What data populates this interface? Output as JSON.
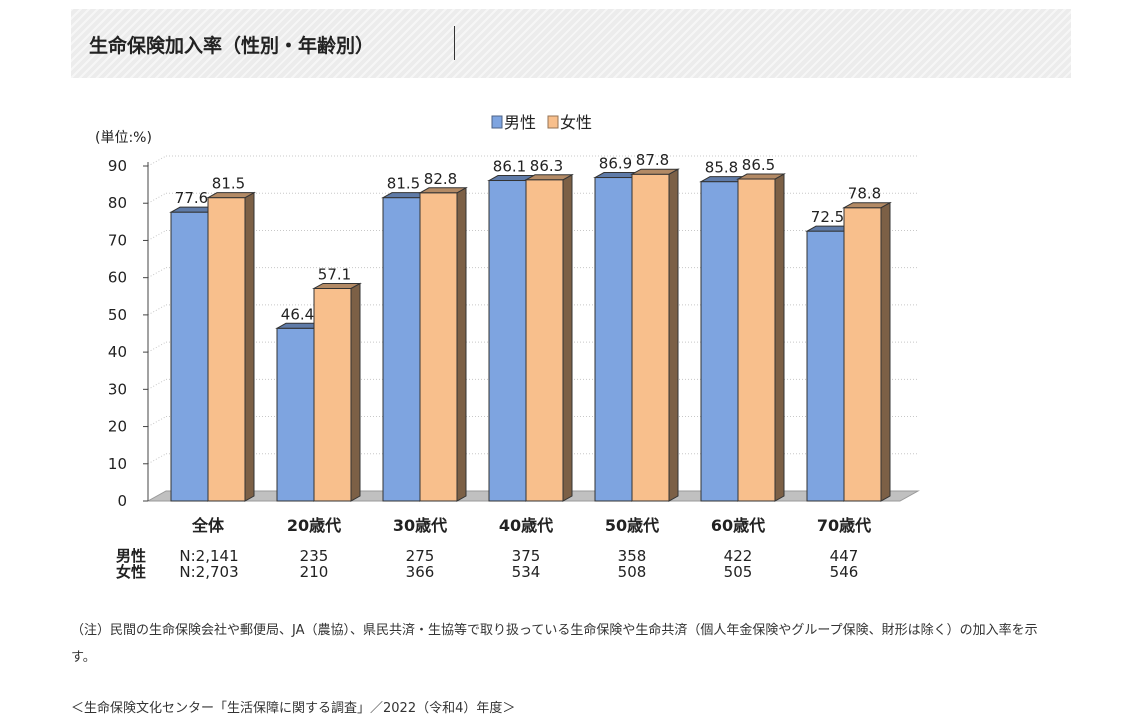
{
  "page": {
    "title": "生命保険加入率（性別・年齢別）",
    "note": "（注）民間の生命保険会社や郵便局、JA（農協）、県民共済・生協等で取り扱っている生命保険や生命共済（個人年金保険やグループ保険、財形は除く）の加入率を示す。",
    "source": "＜生命保険文化センター「生活保障に関する調査」／2022（令和4）年度＞"
  },
  "chart_data": {
    "type": "bar",
    "title": "",
    "ylabel": "(単位:%)",
    "xlabel": "",
    "ylim": [
      0,
      90
    ],
    "yticks": [
      0,
      10,
      20,
      30,
      40,
      50,
      60,
      70,
      80,
      90
    ],
    "grid": true,
    "legend": "top-center",
    "categories": [
      "全体",
      "20歳代",
      "30歳代",
      "40歳代",
      "50歳代",
      "60歳代",
      "70歳代"
    ],
    "series": [
      {
        "name": "男性",
        "color": "#7ea4e0",
        "values": [
          77.6,
          46.4,
          81.5,
          86.1,
          86.9,
          85.8,
          72.5
        ],
        "labels": [
          "77.6",
          "46.4",
          "81.5",
          "86.1",
          "86.9",
          "85.8",
          "72.5"
        ]
      },
      {
        "name": "女性",
        "color": "#f8bf8c",
        "values": [
          81.5,
          57.1,
          82.8,
          86.3,
          87.8,
          86.5,
          78.8
        ],
        "labels": [
          "81.5",
          "57.1",
          "82.8",
          "86.3",
          "87.8",
          "86.5",
          "78.8"
        ]
      }
    ],
    "sample_sizes": [
      {
        "label": "男性",
        "values": [
          "N:2,141",
          "235",
          "275",
          "375",
          "358",
          "422",
          "447"
        ]
      },
      {
        "label": "女性",
        "values": [
          "N:2,703",
          "210",
          "366",
          "534",
          "508",
          "505",
          "546"
        ]
      }
    ]
  }
}
